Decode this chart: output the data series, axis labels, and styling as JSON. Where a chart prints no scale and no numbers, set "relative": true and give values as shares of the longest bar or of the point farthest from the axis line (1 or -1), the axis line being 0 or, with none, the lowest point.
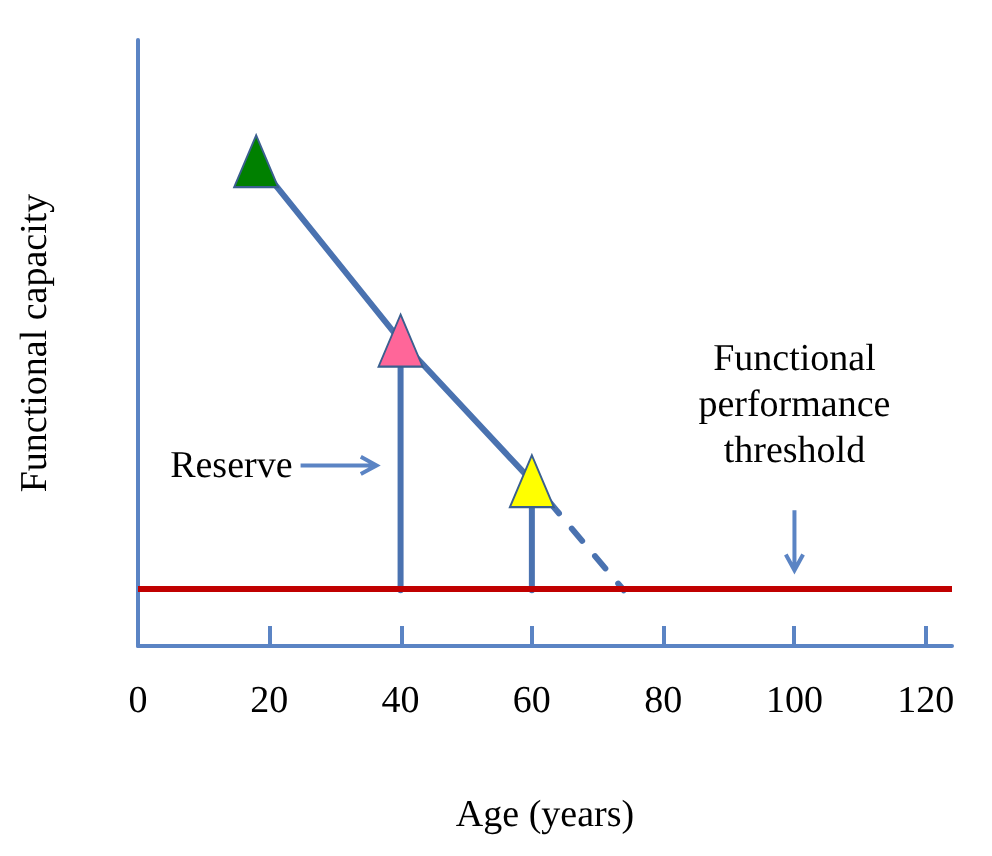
{
  "chart_data": {
    "type": "line",
    "xlabel": "Age (years)",
    "ylabel": "Functional capacity",
    "relative": true,
    "xlim": [
      0,
      124
    ],
    "xticks": [
      0,
      20,
      40,
      60,
      80,
      100,
      120
    ],
    "series": [
      {
        "color": "#4a72b0",
        "x": [
          18,
          40,
          60
        ],
        "values": [
          1,
          0.63,
          0.34
        ],
        "marker": "triangle",
        "colors": [
          "#008000",
          "#ff6699",
          "#ffff00"
        ]
      },
      {
        "color": "#4a72b0",
        "x": [
          60,
          74
        ],
        "values": [
          0.34,
          0.115
        ],
        "marker": "none",
        "line_style": "dashed"
      },
      {
        "color": "#4a72b0",
        "x": [
          40,
          40
        ],
        "values": [
          0.115,
          0.63
        ],
        "marker": "none"
      },
      {
        "color": "#4a72b0",
        "x": [
          60,
          60
        ],
        "values": [
          0.115,
          0.34
        ],
        "marker": "none"
      }
    ],
    "ref_lines": [
      {
        "axis": "y",
        "value": 0.115,
        "label": "Functional performance threshold",
        "color": "#c00000"
      }
    ],
    "annotations": [
      "Reserve"
    ],
    "grid": false
  }
}
